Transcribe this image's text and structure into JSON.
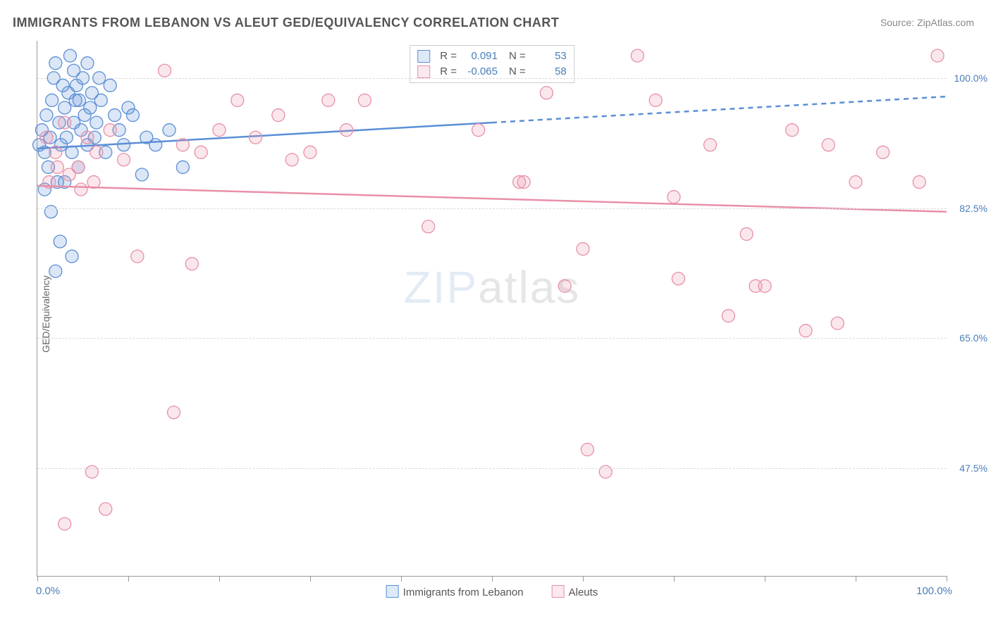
{
  "title": "IMMIGRANTS FROM LEBANON VS ALEUT GED/EQUIVALENCY CORRELATION CHART",
  "source_label": "Source: ZipAtlas.com",
  "ylabel": "GED/Equivalency",
  "watermark_a": "ZIP",
  "watermark_b": "atlas",
  "chart": {
    "type": "scatter_with_trend",
    "background_color": "#ffffff",
    "grid_color": "#d9d9d9",
    "axis_color": "#999999",
    "tick_label_color": "#4a7ebb",
    "xlim": [
      0,
      100
    ],
    "ylim": [
      33,
      105
    ],
    "x_min_label": "0.0%",
    "x_max_label": "100.0%",
    "x_tick_positions": [
      0,
      10,
      20,
      30,
      40,
      50,
      60,
      70,
      80,
      90,
      100
    ],
    "y_ticks": [
      {
        "value": 47.5,
        "label": "47.5%"
      },
      {
        "value": 65.0,
        "label": "65.0%"
      },
      {
        "value": 82.5,
        "label": "82.5%"
      },
      {
        "value": 100.0,
        "label": "100.0%"
      }
    ],
    "marker_radius": 9,
    "marker_stroke_width": 1.3,
    "marker_fill_opacity": 0.22,
    "trend_line_width": 2.5,
    "series": [
      {
        "key": "lebanon",
        "label": "Immigrants from Lebanon",
        "color_stroke": "#5b8fd6",
        "color_fill": "#5b8fd6",
        "R": "0.091",
        "N": "53",
        "trend": {
          "x1": 0,
          "y1": 90.5,
          "x2": 100,
          "y2": 97.5,
          "solid_until_x": 50
        },
        "points": [
          [
            0.2,
            91
          ],
          [
            0.5,
            93
          ],
          [
            0.8,
            90
          ],
          [
            1.0,
            95
          ],
          [
            1.2,
            88
          ],
          [
            1.4,
            92
          ],
          [
            1.6,
            97
          ],
          [
            1.8,
            100
          ],
          [
            2.0,
            102
          ],
          [
            2.2,
            86
          ],
          [
            2.4,
            94
          ],
          [
            2.6,
            91
          ],
          [
            2.8,
            99
          ],
          [
            3.0,
            96
          ],
          [
            3.2,
            92
          ],
          [
            3.4,
            98
          ],
          [
            3.6,
            103
          ],
          [
            3.8,
            90
          ],
          [
            4.0,
            94
          ],
          [
            4.2,
            97
          ],
          [
            4.5,
            88
          ],
          [
            4.8,
            93
          ],
          [
            5.0,
            100
          ],
          [
            5.2,
            95
          ],
          [
            5.5,
            91
          ],
          [
            5.8,
            96
          ],
          [
            6.0,
            98
          ],
          [
            6.3,
            92
          ],
          [
            6.5,
            94
          ],
          [
            7.0,
            97
          ],
          [
            7.5,
            90
          ],
          [
            8.0,
            99
          ],
          [
            8.5,
            95
          ],
          [
            9.0,
            93
          ],
          [
            9.5,
            91
          ],
          [
            10.0,
            96
          ],
          [
            4.0,
            101
          ],
          [
            4.3,
            99
          ],
          [
            4.6,
            97
          ],
          [
            3.0,
            86
          ],
          [
            2.0,
            74
          ],
          [
            3.8,
            76
          ],
          [
            0.8,
            85
          ],
          [
            1.5,
            82
          ],
          [
            11.5,
            87
          ],
          [
            13.0,
            91
          ],
          [
            14.5,
            93
          ],
          [
            16.0,
            88
          ],
          [
            10.5,
            95
          ],
          [
            12.0,
            92
          ],
          [
            5.5,
            102
          ],
          [
            6.8,
            100
          ],
          [
            2.5,
            78
          ]
        ]
      },
      {
        "key": "aleuts",
        "label": "Aleuts",
        "color_stroke": "#e890a8",
        "color_fill": "#e890a8",
        "R": "-0.065",
        "N": "58",
        "trend": {
          "x1": 0,
          "y1": 85.5,
          "x2": 100,
          "y2": 82.0,
          "solid_until_x": 100
        },
        "points": [
          [
            1.0,
            92
          ],
          [
            2.0,
            90
          ],
          [
            3.0,
            94
          ],
          [
            4.5,
            88
          ],
          [
            5.5,
            92
          ],
          [
            6.5,
            90
          ],
          [
            8.0,
            93
          ],
          [
            9.5,
            89
          ],
          [
            11.0,
            76
          ],
          [
            6.0,
            47
          ],
          [
            3.0,
            40
          ],
          [
            7.5,
            42
          ],
          [
            14.0,
            101
          ],
          [
            15.0,
            55
          ],
          [
            16.0,
            91
          ],
          [
            17.0,
            75
          ],
          [
            18.0,
            90
          ],
          [
            20.0,
            93
          ],
          [
            22.0,
            97
          ],
          [
            24.0,
            92
          ],
          [
            26.5,
            95
          ],
          [
            28.0,
            89
          ],
          [
            30.0,
            90
          ],
          [
            32.0,
            97
          ],
          [
            34.0,
            93
          ],
          [
            36.0,
            97
          ],
          [
            43.0,
            80
          ],
          [
            48.0,
            102
          ],
          [
            48.5,
            93
          ],
          [
            53.0,
            86
          ],
          [
            53.5,
            86
          ],
          [
            56.0,
            98
          ],
          [
            58.0,
            72
          ],
          [
            60.0,
            77
          ],
          [
            60.5,
            50
          ],
          [
            62.5,
            47
          ],
          [
            66.0,
            103
          ],
          [
            68.0,
            97
          ],
          [
            70.0,
            84
          ],
          [
            70.5,
            73
          ],
          [
            74.0,
            91
          ],
          [
            76.0,
            68
          ],
          [
            78.0,
            79
          ],
          [
            79.0,
            72
          ],
          [
            80.0,
            72
          ],
          [
            83.0,
            93
          ],
          [
            84.5,
            66
          ],
          [
            87.0,
            91
          ],
          [
            88.0,
            67
          ],
          [
            90.0,
            86
          ],
          [
            93.0,
            90
          ],
          [
            97.0,
            86
          ],
          [
            99.0,
            103
          ],
          [
            3.5,
            87
          ],
          [
            4.8,
            85
          ],
          [
            6.2,
            86
          ],
          [
            2.2,
            88
          ],
          [
            1.3,
            86
          ]
        ]
      }
    ]
  },
  "legend_box_labels": {
    "R": "R  =",
    "N": "N =",
    "tick_label_fontsize": 14
  }
}
